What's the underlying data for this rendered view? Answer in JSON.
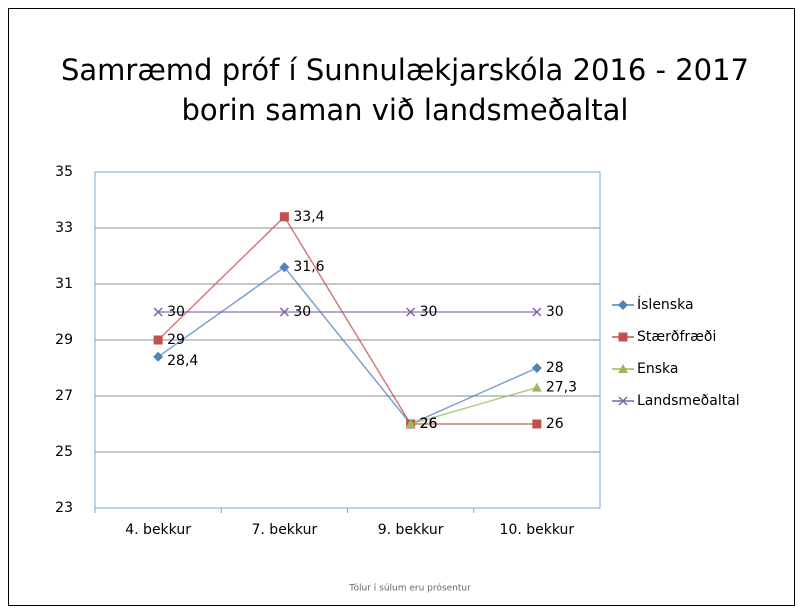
{
  "chart_data": {
    "type": "line",
    "title": [
      "Samræmd próf í Sunnulækjarskóla 2016 - 2017",
      "borin saman við landsmeðaltal"
    ],
    "note": "Tölur í súlum eru prósentur",
    "categories": [
      "4. bekkur",
      "7. bekkur",
      "9. bekkur",
      "10. bekkur"
    ],
    "series": [
      {
        "name": "Íslenska",
        "color": "#4f81bd",
        "marker": "diamond",
        "values": [
          28.4,
          31.6,
          26,
          28
        ],
        "value_labels": [
          "28,4",
          "31,6",
          "26",
          "28"
        ]
      },
      {
        "name": "Stærðfræði",
        "color": "#c0504d",
        "marker": "square",
        "values": [
          29,
          33.4,
          26,
          26
        ],
        "value_labels": [
          "29",
          "33,4",
          "26",
          "26"
        ]
      },
      {
        "name": "Enska",
        "color": "#9bbb59",
        "marker": "triangle",
        "values": [
          null,
          null,
          26,
          27.3
        ],
        "value_labels": [
          null,
          null,
          "26",
          "27,3"
        ]
      },
      {
        "name": "Landsmeðaltal",
        "color": "#8064a2",
        "marker": "x",
        "values": [
          30,
          30,
          30,
          30
        ],
        "value_labels": [
          "30",
          "30",
          "30",
          "30"
        ]
      }
    ],
    "ylim": [
      23,
      35
    ],
    "yticks": [
      23,
      25,
      27,
      29,
      31,
      33,
      35
    ],
    "grid": true,
    "legend": "right"
  }
}
